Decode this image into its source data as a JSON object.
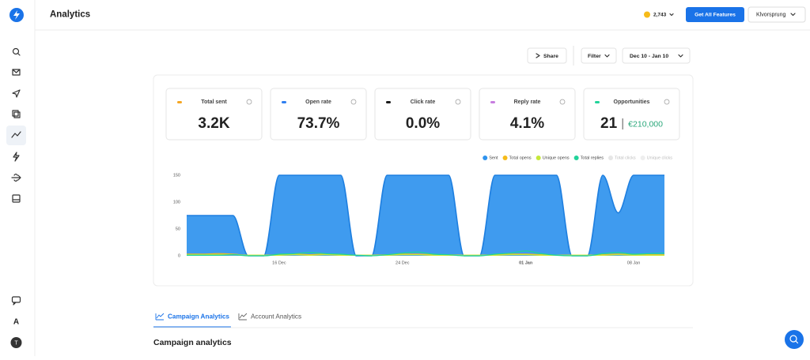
{
  "header": {
    "title": "Analytics",
    "credits": "2,743",
    "upgrade_button": "Get All Features",
    "workspace": "Klvorsprung"
  },
  "toolbar": {
    "share": "Share",
    "filter": "Filter",
    "date_range": "Dec 10 - Jan 10"
  },
  "stats": [
    {
      "label": "Total sent",
      "value": "3.2K",
      "color": "#f5a623"
    },
    {
      "label": "Open rate",
      "value": "73.7%",
      "color": "#2f7ff0"
    },
    {
      "label": "Click rate",
      "value": "0.0%",
      "color": "#1a1a1a"
    },
    {
      "label": "Reply rate",
      "value": "4.1%",
      "color": "#c77ddf"
    },
    {
      "label": "Opportunities",
      "value": "21",
      "secondary": "€210,000",
      "color": "#22d39a"
    }
  ],
  "chart_data": {
    "type": "area",
    "categories": [
      null,
      null,
      null,
      null,
      null,
      null,
      "16 Dec",
      null,
      null,
      null,
      null,
      null,
      null,
      null,
      "24 Dec",
      null,
      null,
      null,
      null,
      null,
      null,
      null,
      "01 Jan",
      null,
      null,
      null,
      null,
      null,
      null,
      "08 Jan",
      null,
      null
    ],
    "emphasized_category": 22,
    "series": [
      {
        "name": "Sent",
        "color": "#2f93ee",
        "values": [
          75,
          75,
          75,
          75,
          0,
          0,
          150,
          150,
          150,
          150,
          150,
          0,
          0,
          150,
          150,
          150,
          150,
          150,
          0,
          0,
          150,
          150,
          150,
          150,
          150,
          0,
          0,
          150,
          80,
          150,
          150,
          150
        ]
      },
      {
        "name": "Total opens",
        "color": "#f6bb1a",
        "values": [
          3,
          3,
          4,
          3,
          1,
          1,
          2,
          3,
          2,
          3,
          2,
          1,
          1,
          2,
          3,
          3,
          2,
          2,
          1,
          1,
          2,
          3,
          3,
          2,
          1,
          1,
          1,
          2,
          3,
          2,
          2,
          2
        ]
      },
      {
        "name": "Unique opens",
        "color": "#c6e83a",
        "values": [
          2,
          2,
          2,
          2,
          1,
          1,
          1,
          2,
          1,
          2,
          1,
          1,
          1,
          1,
          2,
          2,
          1,
          1,
          1,
          1,
          1,
          2,
          2,
          1,
          1,
          1,
          1,
          1,
          2,
          1,
          1,
          1
        ]
      },
      {
        "name": "Total replies",
        "color": "#22d39a",
        "values": [
          1,
          1,
          1,
          2,
          0,
          0,
          3,
          4,
          6,
          4,
          3,
          1,
          0,
          2,
          5,
          7,
          3,
          2,
          0,
          0,
          3,
          5,
          9,
          4,
          1,
          0,
          0,
          4,
          6,
          3,
          4,
          5
        ]
      },
      {
        "name": "Total clicks",
        "color": "#e6e6e6",
        "hidden": true
      },
      {
        "name": "Unique clicks",
        "color": "#eeeeee",
        "hidden": true
      }
    ],
    "ylim": [
      0,
      150
    ],
    "yticks": [
      0,
      50,
      100,
      150
    ],
    "grid": false,
    "legend": "top-right"
  },
  "tabs": [
    "Campaign Analytics",
    "Account Analytics"
  ],
  "active_tab": 0,
  "section_title": "Campaign analytics",
  "sidebar": {
    "workspace_letter": "A",
    "avatar": "T"
  }
}
